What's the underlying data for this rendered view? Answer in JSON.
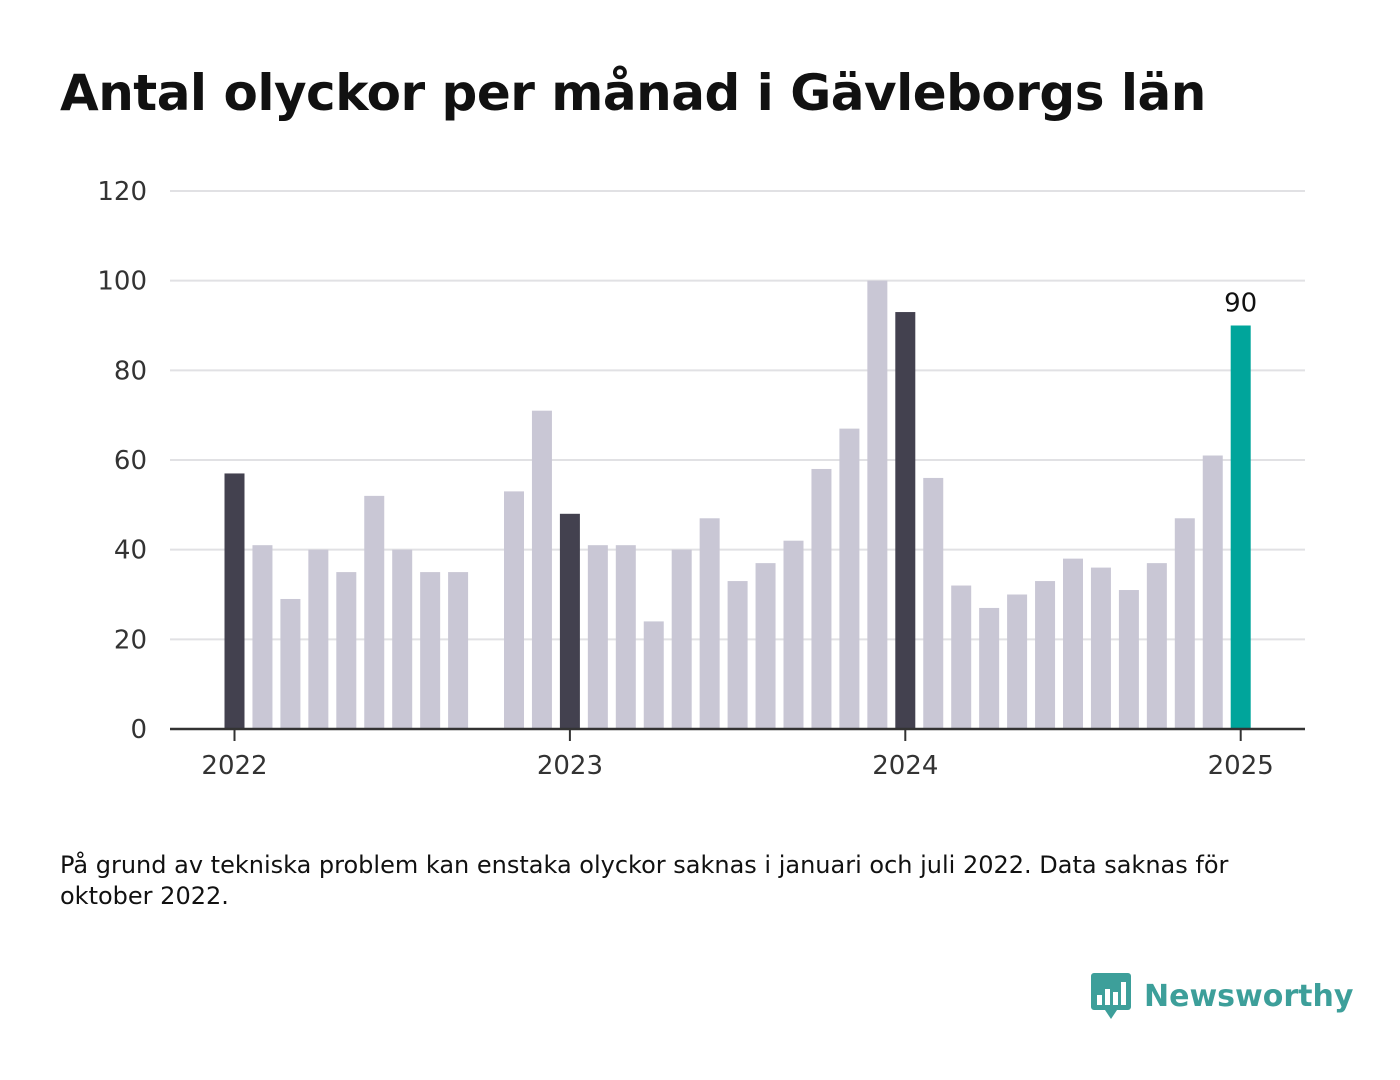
{
  "title": "Antal olyckor per månad i Gävleborgs län",
  "footnote": "På grund av tekniska problem kan enstaka olyckor saknas i januari och juli 2022. Data saknas för oktober 2022.",
  "brand": {
    "name": "Newsworthy",
    "icon": "newsworthy-bar-chart-icon",
    "color": "#3d9f9a"
  },
  "colors": {
    "january": "#43414f",
    "regular": "#c9c7d5",
    "latest": "#00a59b",
    "grid": "#e1e1e4",
    "axis": "#333333"
  },
  "chart_data": {
    "type": "bar",
    "title": "Antal olyckor per månad i Gävleborgs län",
    "xlabel": "",
    "ylabel": "",
    "ylim": [
      0,
      120
    ],
    "y_ticks": [
      0,
      20,
      40,
      60,
      80,
      100,
      120
    ],
    "x_tick_labels": [
      "2022",
      "2023",
      "2024",
      "2025"
    ],
    "grid": true,
    "categories": [
      "2022-01",
      "2022-02",
      "2022-03",
      "2022-04",
      "2022-05",
      "2022-06",
      "2022-07",
      "2022-08",
      "2022-09",
      "2022-10",
      "2022-11",
      "2022-12",
      "2023-01",
      "2023-02",
      "2023-03",
      "2023-04",
      "2023-05",
      "2023-06",
      "2023-07",
      "2023-08",
      "2023-09",
      "2023-10",
      "2023-11",
      "2023-12",
      "2024-01",
      "2024-02",
      "2024-03",
      "2024-04",
      "2024-05",
      "2024-06",
      "2024-07",
      "2024-08",
      "2024-09",
      "2024-10",
      "2024-11",
      "2024-12",
      "2025-01"
    ],
    "values": [
      57,
      41,
      29,
      40,
      35,
      52,
      40,
      35,
      35,
      null,
      53,
      71,
      48,
      41,
      41,
      24,
      40,
      47,
      33,
      37,
      42,
      58,
      67,
      100,
      93,
      56,
      32,
      27,
      30,
      33,
      38,
      36,
      31,
      37,
      47,
      61,
      90
    ],
    "annotations": [
      {
        "category": "2025-01",
        "text": "90"
      }
    ]
  }
}
